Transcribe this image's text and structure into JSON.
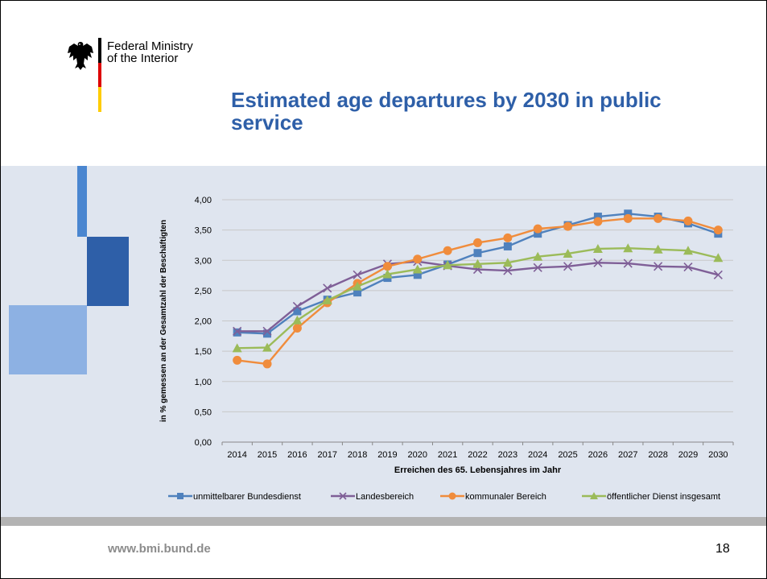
{
  "header": {
    "ministry_line1": "Federal Ministry",
    "ministry_line2": "of the Interior",
    "flag_colors": [
      "#000000",
      "#dd0000",
      "#ffcc00"
    ]
  },
  "slide": {
    "title": "Estimated age departures by 2030 in public service"
  },
  "footer": {
    "url": "www.bmi.bund.de",
    "page_number": "18"
  },
  "colors": {
    "title": "#2e5fa8",
    "band": "#dfe5ef",
    "deco_dark": "#2e5fa8",
    "deco_mid": "#4a86d0",
    "deco_light": "#8db1e3"
  },
  "chart_data": {
    "type": "line",
    "xlabel": "Erreichen des 65. Lebensjahres im Jahr",
    "ylabel": "in % gemessen an der Gesamtzahl der Beschäftigten",
    "ylim": [
      0,
      4
    ],
    "yticks": [
      "0,00",
      "0,50",
      "1,00",
      "1,50",
      "2,00",
      "2,50",
      "3,00",
      "3,50",
      "4,00"
    ],
    "grid": true,
    "legend_position": "bottom",
    "categories": [
      "2014",
      "2015",
      "2016",
      "2017",
      "2018",
      "2019",
      "2020",
      "2021",
      "2022",
      "2023",
      "2024",
      "2025",
      "2026",
      "2027",
      "2028",
      "2029",
      "2030"
    ],
    "series": [
      {
        "name": "unmittelbarer Bundesdienst",
        "color": "#4f81bd",
        "marker": "square",
        "values": [
          1.81,
          1.79,
          2.16,
          2.35,
          2.47,
          2.71,
          2.76,
          2.93,
          3.12,
          3.23,
          3.44,
          3.58,
          3.72,
          3.77,
          3.72,
          3.61,
          3.44
        ]
      },
      {
        "name": "Landesbereich",
        "color": "#7f5f97",
        "marker": "x",
        "values": [
          1.83,
          1.83,
          2.24,
          2.54,
          2.76,
          2.94,
          2.98,
          2.91,
          2.85,
          2.83,
          2.88,
          2.9,
          2.96,
          2.95,
          2.9,
          2.89,
          2.76
        ]
      },
      {
        "name": "kommunaler Bereich",
        "color": "#f08c3c",
        "marker": "circle",
        "values": [
          1.35,
          1.29,
          1.88,
          2.3,
          2.62,
          2.9,
          3.02,
          3.16,
          3.29,
          3.37,
          3.52,
          3.56,
          3.64,
          3.69,
          3.69,
          3.65,
          3.5
        ]
      },
      {
        "name": "öffentlicher Dienst insgesamt",
        "color": "#9bbb59",
        "marker": "triangle",
        "values": [
          1.55,
          1.56,
          2.01,
          2.34,
          2.57,
          2.77,
          2.85,
          2.92,
          2.94,
          2.96,
          3.06,
          3.11,
          3.19,
          3.2,
          3.18,
          3.16,
          3.04
        ]
      }
    ]
  }
}
